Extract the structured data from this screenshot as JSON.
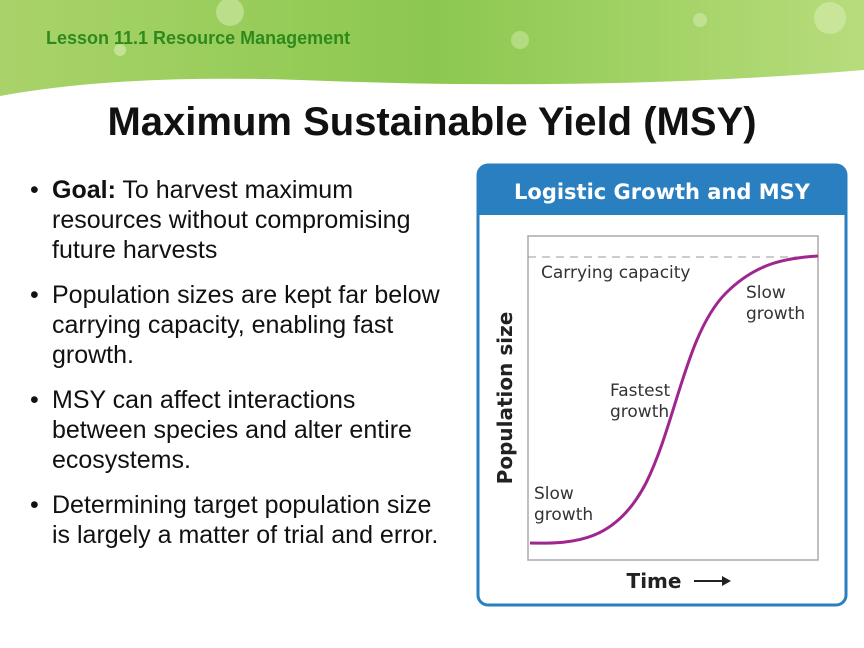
{
  "header": {
    "lesson": "Lesson 11.1 Resource Management"
  },
  "title": "Maximum Sustainable Yield (MSY)",
  "bullets": [
    {
      "label": "Goal:",
      "text": "To harvest maximum resources without compromising future harvests"
    },
    {
      "text": "Population sizes are kept far below carrying capacity, enabling fast growth."
    },
    {
      "text": "MSY can affect interactions between species and alter entire ecosystems."
    },
    {
      "text": "Determining target population size is largely a matter of trial and error."
    }
  ],
  "figure": {
    "title": "Logistic Growth and MSY",
    "y_label": "Population size",
    "x_label": "Time",
    "annotations": {
      "carrying_capacity": "Carrying capacity",
      "slow_top": [
        "Slow",
        "growth"
      ],
      "fastest": [
        "Fastest",
        "growth"
      ],
      "slow_bottom": [
        "Slow",
        "growth"
      ]
    }
  }
}
